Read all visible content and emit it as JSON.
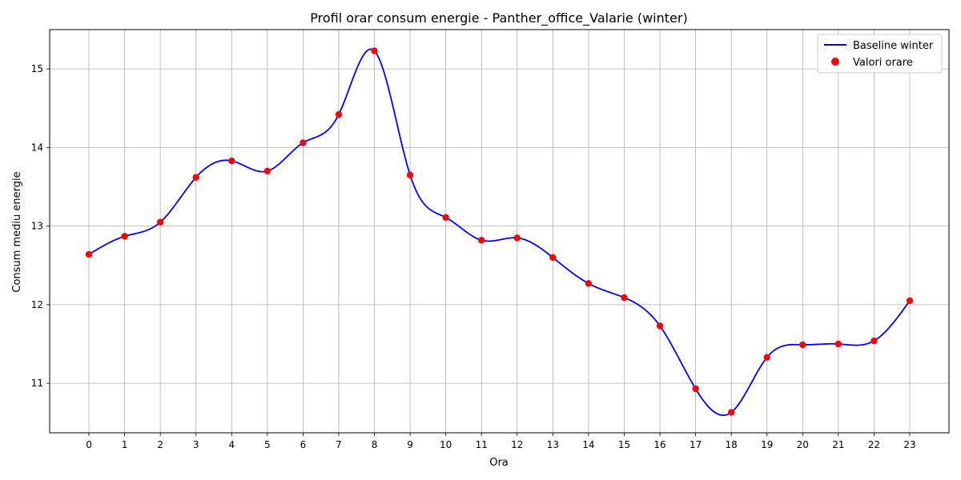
{
  "chart_data": {
    "type": "line",
    "title": "Profil orar consum energie - Panther_office_Valarie (winter)",
    "xlabel": "Ora",
    "ylabel": "Consum mediu energie",
    "x": [
      0,
      1,
      2,
      3,
      4,
      5,
      6,
      7,
      8,
      9,
      10,
      11,
      12,
      13,
      14,
      15,
      16,
      17,
      18,
      19,
      20,
      21,
      22,
      23
    ],
    "xticks": [
      "0",
      "1",
      "2",
      "3",
      "4",
      "5",
      "6",
      "7",
      "8",
      "9",
      "10",
      "11",
      "12",
      "13",
      "14",
      "15",
      "16",
      "17",
      "18",
      "19",
      "20",
      "21",
      "22",
      "23"
    ],
    "yticks": [
      "11",
      "12",
      "13",
      "14",
      "15"
    ],
    "ylim": [
      10.37,
      15.5
    ],
    "xlim": [
      -1.1,
      24.1
    ],
    "grid": true,
    "legend_position": "top-right",
    "series": [
      {
        "name": "Baseline winter",
        "kind": "line",
        "color": "#0000ff",
        "values": [
          12.64,
          12.87,
          13.05,
          13.62,
          13.83,
          13.7,
          14.06,
          14.42,
          15.23,
          13.65,
          13.11,
          12.82,
          12.85,
          12.6,
          12.27,
          12.09,
          11.73,
          10.93,
          10.63,
          11.33,
          11.49,
          11.5,
          11.54,
          12.05
        ]
      },
      {
        "name": "Valori orare",
        "kind": "scatter",
        "color": "#ff0000",
        "values": [
          12.64,
          12.87,
          13.05,
          13.62,
          13.83,
          13.7,
          14.06,
          14.42,
          15.23,
          13.65,
          13.11,
          12.82,
          12.85,
          12.6,
          12.27,
          12.09,
          11.73,
          10.93,
          10.63,
          11.33,
          11.49,
          11.5,
          11.54,
          12.05
        ]
      }
    ]
  }
}
